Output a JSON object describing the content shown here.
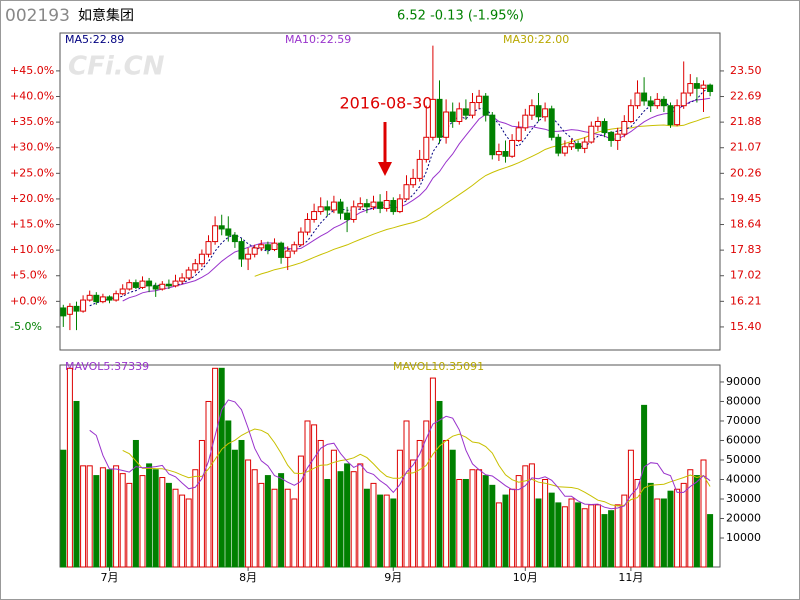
{
  "header": {
    "code": "002193",
    "name": "如意集团",
    "quote": "6.52 -0.13 (-1.95%)"
  },
  "watermark": "CFi.CN",
  "chart_data": [
    {
      "type": "candlestick",
      "annotation": "2016-08-30",
      "ma_labels": [
        "MA5:22.89",
        "MA10:22.59",
        "MA30:22.00"
      ],
      "up_color": "#dd0000",
      "down_color": "#008000",
      "xlim": [
        -0.5,
        99.5
      ],
      "xticks": [
        {
          "value": 7,
          "label": "7月"
        },
        {
          "value": 28,
          "label": "8月"
        },
        {
          "value": 50,
          "label": "9月"
        },
        {
          "value": 70,
          "label": "10月"
        },
        {
          "value": 86,
          "label": "11月"
        }
      ],
      "ylim": [
        14.67,
        24.7
      ],
      "yticks": [
        {
          "value": 15.4,
          "label": "15.40"
        },
        16.21,
        17.02,
        17.83,
        18.64,
        19.45,
        20.26,
        21.07,
        21.88,
        22.69,
        {
          "value": 23.5,
          "label": "23.50"
        }
      ],
      "y2lim": [
        -9.5,
        52.4
      ],
      "y2ticks": [
        {
          "value": 45,
          "label": "+45.0%"
        },
        {
          "value": 40,
          "label": "+40.0%"
        },
        {
          "value": 35,
          "label": "+35.0%"
        },
        {
          "value": 30,
          "label": "+30.0%"
        },
        {
          "value": 25,
          "label": "+25.0%"
        },
        {
          "value": 20,
          "label": "+20.0%"
        },
        {
          "value": 15,
          "label": "+15.0%"
        },
        {
          "value": 10,
          "label": "+10.0%"
        },
        {
          "value": 5,
          "label": "+5.0%"
        },
        {
          "value": 0,
          "label": "+0.0%"
        },
        {
          "value": -5,
          "label": "-5.0%"
        }
      ],
      "open": [
        16.0,
        15.8,
        16.05,
        15.9,
        16.25,
        16.4,
        16.2,
        16.35,
        16.25,
        16.45,
        16.6,
        16.8,
        16.65,
        16.85,
        16.7,
        16.6,
        16.75,
        16.7,
        16.85,
        16.95,
        17.2,
        17.4,
        17.7,
        18.1,
        18.6,
        18.5,
        18.3,
        18.1,
        17.55,
        17.7,
        17.9,
        18.0,
        17.85,
        18.05,
        17.6,
        17.8,
        18.0,
        18.4,
        18.8,
        19.05,
        19.2,
        19.1,
        19.35,
        19.0,
        18.8,
        19.2,
        19.3,
        19.2,
        19.35,
        19.15,
        19.4,
        19.05,
        19.45,
        19.9,
        20.1,
        20.7,
        21.4,
        22.6,
        21.4,
        22.2,
        21.9,
        22.3,
        22.1,
        22.5,
        22.7,
        22.1,
        20.85,
        20.95,
        20.8,
        21.3,
        21.7,
        22.1,
        22.4,
        22.05,
        22.3,
        21.4,
        20.9,
        21.1,
        21.2,
        21.05,
        21.25,
        21.75,
        21.9,
        21.55,
        21.3,
        21.5,
        21.9,
        22.4,
        22.8,
        22.55,
        22.4,
        22.6,
        22.4,
        21.8,
        22.4,
        22.8,
        23.1,
        22.95,
        23.05
      ],
      "high": [
        16.1,
        16.15,
        16.2,
        16.4,
        16.55,
        16.5,
        16.45,
        16.4,
        16.55,
        16.75,
        16.9,
        16.9,
        17.0,
        16.95,
        16.8,
        16.85,
        16.9,
        17.05,
        17.1,
        17.3,
        17.55,
        17.85,
        18.3,
        18.9,
        18.95,
        18.9,
        18.4,
        18.2,
        17.9,
        18.0,
        18.15,
        18.1,
        18.2,
        18.1,
        17.95,
        18.1,
        18.55,
        19.0,
        19.3,
        19.5,
        19.4,
        19.55,
        19.45,
        19.2,
        19.4,
        19.5,
        19.45,
        19.55,
        19.6,
        19.7,
        19.5,
        19.6,
        20.2,
        20.4,
        21.0,
        22.4,
        24.3,
        23.2,
        22.6,
        22.5,
        22.5,
        22.6,
        22.8,
        22.9,
        22.8,
        22.2,
        21.2,
        21.3,
        21.5,
        21.9,
        22.3,
        22.6,
        22.8,
        22.5,
        22.4,
        21.5,
        21.3,
        21.35,
        21.3,
        21.4,
        21.9,
        22.05,
        22.0,
        21.6,
        21.7,
        22.1,
        22.6,
        23.2,
        23.3,
        22.7,
        22.8,
        22.7,
        22.5,
        22.6,
        23.8,
        23.4,
        23.3,
        23.2,
        23.1
      ],
      "low": [
        15.4,
        15.3,
        15.3,
        15.85,
        16.2,
        16.1,
        16.15,
        16.15,
        16.2,
        16.4,
        16.55,
        16.6,
        16.6,
        16.5,
        16.35,
        16.55,
        16.6,
        16.65,
        16.75,
        16.9,
        17.1,
        17.3,
        17.6,
        18.0,
        18.3,
        18.1,
        17.9,
        17.3,
        17.2,
        17.6,
        17.8,
        17.7,
        17.8,
        17.4,
        17.2,
        17.7,
        17.95,
        18.3,
        18.7,
        18.95,
        18.9,
        19.0,
        18.8,
        18.4,
        18.7,
        19.1,
        19.0,
        19.1,
        19.0,
        19.05,
        18.95,
        19.0,
        19.4,
        19.8,
        20.0,
        20.6,
        21.3,
        21.2,
        21.2,
        21.7,
        21.8,
        21.95,
        22.0,
        22.3,
        21.9,
        20.7,
        20.65,
        20.6,
        20.75,
        21.25,
        21.6,
        21.95,
        21.9,
        21.9,
        21.3,
        20.8,
        20.8,
        21.0,
        20.95,
        20.9,
        21.2,
        21.6,
        21.4,
        21.1,
        21.0,
        21.4,
        21.85,
        22.3,
        22.4,
        22.2,
        22.3,
        22.2,
        21.7,
        21.75,
        22.3,
        22.7,
        22.5,
        22.2,
        22.7
      ],
      "close": [
        15.75,
        16.05,
        15.9,
        16.25,
        16.4,
        16.2,
        16.35,
        16.25,
        16.45,
        16.6,
        16.8,
        16.65,
        16.85,
        16.7,
        16.6,
        16.75,
        16.7,
        16.85,
        16.95,
        17.2,
        17.4,
        17.7,
        18.1,
        18.6,
        18.5,
        18.3,
        18.1,
        17.55,
        17.7,
        17.9,
        18.0,
        17.85,
        18.05,
        17.6,
        17.8,
        18.0,
        18.4,
        18.8,
        19.05,
        19.2,
        19.1,
        19.35,
        19.0,
        18.8,
        19.2,
        19.3,
        19.2,
        19.35,
        19.15,
        19.4,
        19.05,
        19.45,
        19.9,
        20.1,
        20.7,
        21.4,
        22.6,
        21.4,
        22.2,
        21.9,
        22.3,
        22.1,
        22.5,
        22.7,
        22.1,
        20.85,
        20.95,
        20.8,
        21.3,
        21.7,
        22.1,
        22.4,
        22.05,
        22.3,
        21.4,
        20.9,
        21.1,
        21.2,
        21.05,
        21.25,
        21.75,
        21.9,
        21.55,
        21.3,
        21.5,
        21.9,
        22.4,
        22.8,
        22.55,
        22.4,
        22.6,
        22.4,
        21.8,
        22.4,
        22.8,
        23.1,
        22.95,
        23.05,
        22.85
      ]
    },
    {
      "type": "bar",
      "ma_labels": [
        "MAVOL5:37339",
        "MAVOL10:35091"
      ],
      "xlim": [
        -0.5,
        99.5
      ],
      "ylim": [
        -4870,
        98700
      ],
      "yticks": [
        10000,
        20000,
        30000,
        40000,
        50000,
        60000,
        70000,
        80000,
        90000
      ],
      "values": [
        55000,
        97000,
        80000,
        47000,
        47000,
        42000,
        46000,
        45000,
        47000,
        43000,
        38000,
        60000,
        42000,
        48000,
        45000,
        41000,
        38000,
        35000,
        32000,
        30000,
        45000,
        60000,
        80000,
        97000,
        97000,
        70000,
        55000,
        60000,
        50000,
        45000,
        38000,
        42000,
        35000,
        43000,
        35000,
        30000,
        52000,
        70000,
        68000,
        60000,
        40000,
        55000,
        44000,
        48000,
        44000,
        48000,
        35000,
        38000,
        32000,
        32000,
        30000,
        55000,
        70000,
        50000,
        60000,
        70000,
        92000,
        80000,
        60000,
        55000,
        40000,
        40000,
        45000,
        45000,
        42000,
        37000,
        28000,
        32000,
        35000,
        42000,
        47000,
        48000,
        30000,
        40000,
        33000,
        28000,
        26000,
        30000,
        28000,
        25000,
        27000,
        27000,
        22000,
        24000,
        27000,
        32000,
        55000,
        40000,
        78000,
        38000,
        30000,
        30000,
        34000,
        35000,
        38000,
        45000,
        42000,
        50000,
        22000
      ]
    }
  ]
}
